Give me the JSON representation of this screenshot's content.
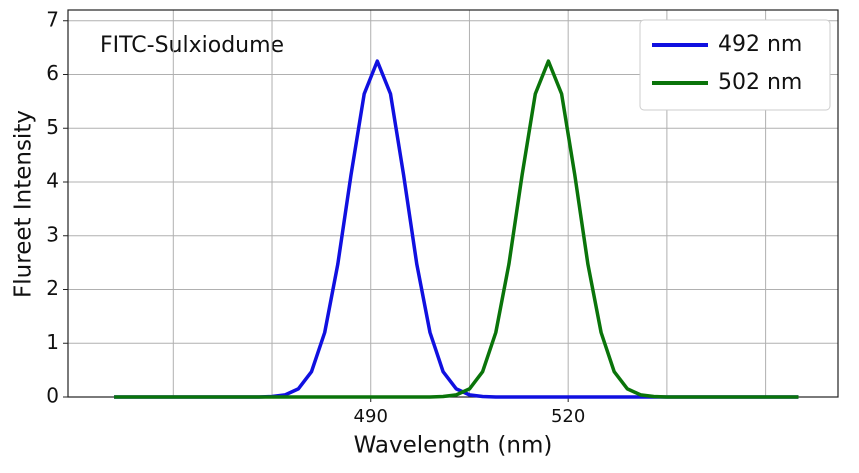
{
  "chart_data": {
    "type": "line",
    "annotation": "FITC-Sulxiodume",
    "x_label": "Wavelength (nm)",
    "y_label": "Flureet Intensity",
    "x": [
      451,
      453,
      455,
      457,
      459,
      461,
      463,
      465,
      467,
      469,
      471,
      473,
      475,
      477,
      479,
      481,
      483,
      485,
      487,
      489,
      491,
      493,
      495,
      497,
      499,
      501,
      503,
      505,
      507,
      509,
      511,
      513,
      515,
      517,
      519,
      521,
      523,
      525,
      527,
      529,
      531,
      533,
      535,
      537,
      539,
      541,
      543,
      545,
      547,
      549,
      551,
      553,
      555
    ],
    "series": [
      {
        "name": "492 nm",
        "color": "#1010e0",
        "values": [
          0,
          0,
          0,
          0,
          0,
          0,
          0,
          0,
          0,
          0,
          0,
          0,
          0.01,
          0.04,
          0.15,
          0.47,
          1.2,
          2.47,
          4.13,
          5.64,
          6.25,
          5.64,
          4.13,
          2.47,
          1.2,
          0.47,
          0.15,
          0.04,
          0.01,
          0,
          0,
          0,
          0,
          0,
          0,
          0,
          0,
          0,
          0,
          0,
          0,
          0,
          0,
          0,
          0,
          0,
          0,
          0,
          0,
          0,
          0,
          0,
          0
        ]
      },
      {
        "name": "502 nm",
        "color": "#0a740a",
        "values": [
          0,
          0,
          0,
          0,
          0,
          0,
          0,
          0,
          0,
          0,
          0,
          0,
          0,
          0,
          0,
          0,
          0,
          0,
          0,
          0,
          0,
          0,
          0,
          0,
          0,
          0.01,
          0.04,
          0.15,
          0.47,
          1.2,
          2.47,
          4.13,
          5.64,
          6.25,
          5.64,
          4.13,
          2.47,
          1.2,
          0.47,
          0.15,
          0.04,
          0.01,
          0,
          0,
          0,
          0,
          0,
          0,
          0,
          0,
          0,
          0,
          0
        ]
      }
    ],
    "xlim": [
      444,
      561
    ],
    "xticks": [
      490,
      520
    ],
    "xgrid": [
      460,
      475,
      490,
      505,
      520,
      535,
      550
    ],
    "ylim": [
      0,
      7.2
    ],
    "yticks": [
      0,
      1,
      2,
      3,
      4,
      5,
      6,
      7
    ],
    "grid": true,
    "legend": "upper right"
  }
}
